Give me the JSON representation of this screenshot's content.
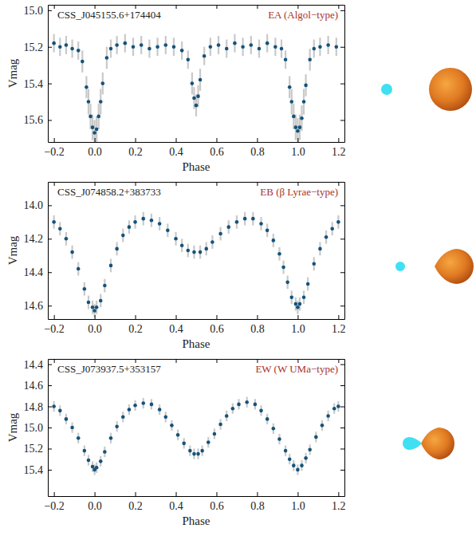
{
  "chart_data": [
    {
      "type": "scatter",
      "title": "CSS_J045155.6+174404",
      "subtitle": "EA (Algol−type)",
      "x_label": "Phase",
      "y_label": "Vmag",
      "color": "#15537a",
      "xlim": [
        -0.23,
        1.23
      ],
      "xticks": [
        {
          "value": -0.2,
          "label": "−0.2"
        },
        {
          "value": 0,
          "label": "0.0"
        },
        0.2,
        0.4,
        0.6,
        0.8,
        {
          "value": 1,
          "label": "1.0"
        },
        1.2
      ],
      "ylim": [
        15.72,
        14.97
      ],
      "yticks": [
        {
          "value": 15,
          "label": "15.0"
        },
        15.2,
        15.4,
        15.6
      ],
      "x": [
        -0.2,
        -0.17,
        -0.14,
        -0.11,
        -0.08,
        -0.06,
        -0.04,
        -0.03,
        -0.02,
        -0.01,
        0,
        0.01,
        0.02,
        0.03,
        0.04,
        0.06,
        0.08,
        0.11,
        0.15,
        0.19,
        0.23,
        0.27,
        0.31,
        0.35,
        0.39,
        0.43,
        0.46,
        0.48,
        0.49,
        0.5,
        0.51,
        0.52,
        0.54,
        0.57,
        0.61,
        0.65,
        0.69,
        0.73,
        0.77,
        0.81,
        0.85,
        0.89,
        0.92,
        0.94,
        0.96,
        0.97,
        0.98,
        0.99,
        1,
        1.01,
        1.02,
        1.03,
        1.04,
        1.06,
        1.08,
        1.11,
        1.15,
        1.19
      ],
      "values": [
        15.18,
        15.2,
        15.19,
        15.21,
        15.22,
        15.28,
        15.42,
        15.5,
        15.58,
        15.64,
        15.67,
        15.65,
        15.58,
        15.5,
        15.4,
        15.26,
        15.21,
        15.19,
        15.18,
        15.2,
        15.19,
        15.21,
        15.2,
        15.19,
        15.2,
        15.22,
        15.27,
        15.4,
        15.48,
        15.52,
        15.47,
        15.38,
        15.25,
        15.2,
        15.19,
        15.21,
        15.18,
        15.2,
        15.19,
        15.21,
        15.18,
        15.2,
        15.21,
        15.27,
        15.42,
        15.5,
        15.58,
        15.64,
        15.66,
        15.64,
        15.59,
        15.5,
        15.41,
        15.27,
        15.21,
        15.2,
        15.19,
        15.2
      ],
      "errors": [
        0.05,
        0.05,
        0.05,
        0.05,
        0.05,
        0.06,
        0.06,
        0.07,
        0.07,
        0.07,
        0.07,
        0.07,
        0.07,
        0.07,
        0.06,
        0.06,
        0.05,
        0.05,
        0.05,
        0.05,
        0.05,
        0.05,
        0.05,
        0.05,
        0.05,
        0.05,
        0.05,
        0.06,
        0.06,
        0.06,
        0.06,
        0.06,
        0.05,
        0.05,
        0.05,
        0.05,
        0.05,
        0.05,
        0.05,
        0.05,
        0.05,
        0.05,
        0.05,
        0.05,
        0.06,
        0.07,
        0.07,
        0.07,
        0.07,
        0.07,
        0.07,
        0.07,
        0.06,
        0.06,
        0.05,
        0.05,
        0.05,
        0.05
      ]
    },
    {
      "type": "scatter",
      "title": "CSS_J074858.2+383733",
      "subtitle": "EB (β Lyrae−type)",
      "x_label": "Phase",
      "y_label": "Vmag",
      "color": "#15537a",
      "xlim": [
        -0.23,
        1.23
      ],
      "xticks": [
        {
          "value": -0.2,
          "label": "−0.2"
        },
        {
          "value": 0,
          "label": "0.0"
        },
        0.2,
        0.4,
        0.6,
        0.8,
        {
          "value": 1,
          "label": "1.0"
        },
        1.2
      ],
      "ylim": [
        14.68,
        13.86
      ],
      "yticks": [
        {
          "value": 14,
          "label": "14.0"
        },
        14.2,
        14.4,
        14.6
      ],
      "x": [
        -0.2,
        -0.17,
        -0.14,
        -0.11,
        -0.08,
        -0.05,
        -0.03,
        -0.01,
        0,
        0.01,
        0.03,
        0.05,
        0.08,
        0.11,
        0.14,
        0.17,
        0.2,
        0.24,
        0.28,
        0.32,
        0.36,
        0.4,
        0.43,
        0.46,
        0.49,
        0.52,
        0.55,
        0.58,
        0.62,
        0.66,
        0.7,
        0.74,
        0.78,
        0.82,
        0.85,
        0.88,
        0.91,
        0.93,
        0.95,
        0.97,
        0.99,
        1,
        1.01,
        1.03,
        1.05,
        1.08,
        1.11,
        1.14,
        1.17,
        1.2
      ],
      "values": [
        14.1,
        14.14,
        14.2,
        14.28,
        14.38,
        14.5,
        14.58,
        14.61,
        14.63,
        14.61,
        14.57,
        14.48,
        14.36,
        14.26,
        14.18,
        14.13,
        14.1,
        14.08,
        14.09,
        14.11,
        14.15,
        14.2,
        14.24,
        14.27,
        14.28,
        14.28,
        14.26,
        14.22,
        14.17,
        14.13,
        14.1,
        14.08,
        14.08,
        14.11,
        14.15,
        14.21,
        14.29,
        14.37,
        14.46,
        14.55,
        14.59,
        14.61,
        14.59,
        14.55,
        14.47,
        14.35,
        14.26,
        14.19,
        14.14,
        14.1
      ],
      "errors": [
        0.04,
        0.04,
        0.04,
        0.04,
        0.04,
        0.04,
        0.04,
        0.04,
        0.04,
        0.04,
        0.04,
        0.04,
        0.04,
        0.04,
        0.04,
        0.04,
        0.04,
        0.04,
        0.04,
        0.04,
        0.04,
        0.04,
        0.04,
        0.04,
        0.04,
        0.04,
        0.04,
        0.04,
        0.04,
        0.04,
        0.04,
        0.04,
        0.04,
        0.04,
        0.04,
        0.04,
        0.04,
        0.04,
        0.04,
        0.04,
        0.04,
        0.04,
        0.04,
        0.04,
        0.04,
        0.04,
        0.04,
        0.04,
        0.04,
        0.04
      ]
    },
    {
      "type": "scatter",
      "title": "CSS_J073937.5+353157",
      "subtitle": "EW (W UMa−type)",
      "x_label": "Phase",
      "y_label": "Vmag",
      "color": "#15537a",
      "xlim": [
        -0.23,
        1.23
      ],
      "xticks": [
        {
          "value": -0.2,
          "label": "−0.2"
        },
        {
          "value": 0,
          "label": "0.0"
        },
        0.2,
        0.4,
        0.6,
        0.8,
        {
          "value": 1,
          "label": "1.0"
        },
        1.2
      ],
      "ylim": [
        15.65,
        14.35
      ],
      "yticks": [
        14.4,
        14.6,
        14.8,
        {
          "value": 15,
          "label": "15.0"
        },
        15.2,
        15.4
      ],
      "x": [
        -0.2,
        -0.17,
        -0.14,
        -0.11,
        -0.08,
        -0.05,
        -0.03,
        -0.01,
        0,
        0.01,
        0.03,
        0.05,
        0.08,
        0.11,
        0.14,
        0.17,
        0.2,
        0.24,
        0.28,
        0.32,
        0.35,
        0.38,
        0.41,
        0.44,
        0.47,
        0.49,
        0.51,
        0.53,
        0.56,
        0.59,
        0.62,
        0.65,
        0.68,
        0.71,
        0.75,
        0.79,
        0.82,
        0.85,
        0.88,
        0.91,
        0.94,
        0.96,
        0.98,
        1,
        1.02,
        1.04,
        1.06,
        1.09,
        1.12,
        1.15,
        1.18,
        1.2
      ],
      "values": [
        14.8,
        14.84,
        14.92,
        15,
        15.1,
        15.22,
        15.31,
        15.37,
        15.4,
        15.38,
        15.32,
        15.23,
        15.1,
        14.99,
        14.9,
        14.83,
        14.79,
        14.77,
        14.78,
        14.83,
        14.9,
        14.98,
        15.07,
        15.15,
        15.22,
        15.25,
        15.25,
        15.22,
        15.14,
        15.06,
        14.97,
        14.89,
        14.82,
        14.78,
        14.76,
        14.78,
        14.84,
        14.92,
        15.01,
        15.11,
        15.22,
        15.3,
        15.36,
        15.4,
        15.36,
        15.29,
        15.21,
        15.09,
        14.98,
        14.89,
        14.82,
        14.8
      ],
      "errors": [
        0.05,
        0.05,
        0.05,
        0.05,
        0.05,
        0.05,
        0.05,
        0.05,
        0.05,
        0.05,
        0.05,
        0.05,
        0.05,
        0.05,
        0.05,
        0.05,
        0.05,
        0.05,
        0.05,
        0.05,
        0.05,
        0.05,
        0.05,
        0.05,
        0.05,
        0.05,
        0.05,
        0.05,
        0.05,
        0.05,
        0.05,
        0.05,
        0.05,
        0.05,
        0.05,
        0.05,
        0.05,
        0.05,
        0.05,
        0.05,
        0.05,
        0.05,
        0.05,
        0.05,
        0.05,
        0.05,
        0.05,
        0.05,
        0.05,
        0.05,
        0.05,
        0.05
      ]
    }
  ]
}
